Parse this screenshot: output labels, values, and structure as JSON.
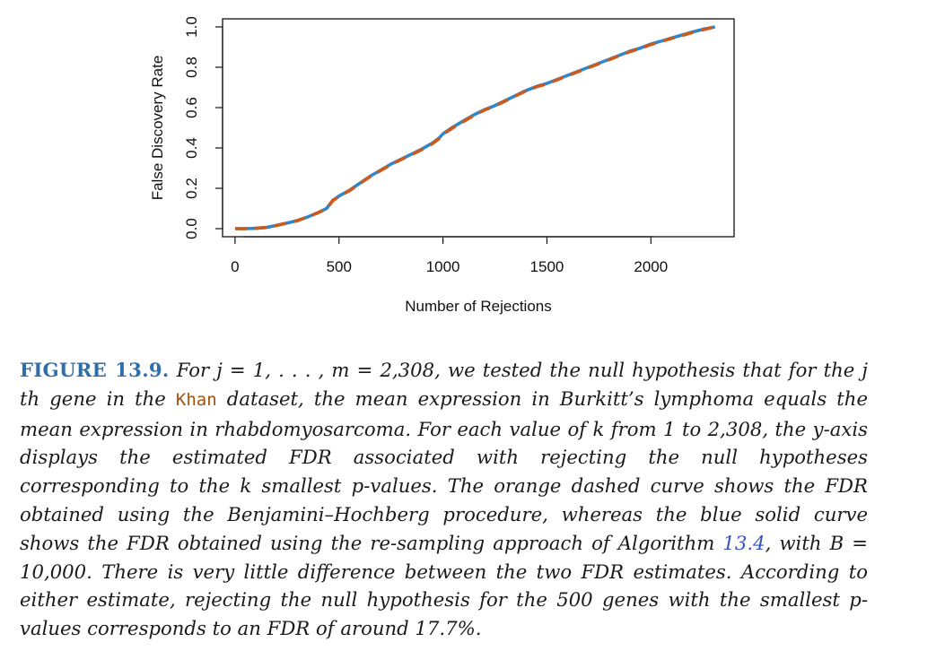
{
  "chart_data": {
    "type": "line",
    "title": "",
    "xlabel": "Number of Rejections",
    "ylabel": "False Discovery Rate",
    "xlim": [
      -60,
      2400
    ],
    "ylim": [
      -0.04,
      1.04
    ],
    "x_ticks": [
      0,
      500,
      1000,
      1500,
      2000
    ],
    "x_tick_labels": [
      "0",
      "500",
      "1000",
      "1500",
      "2000"
    ],
    "y_ticks": [
      0.0,
      0.2,
      0.4,
      0.6,
      0.8,
      1.0
    ],
    "y_tick_labels": [
      "0.0",
      "0.2",
      "0.4",
      "0.6",
      "0.8",
      "1.0"
    ],
    "grid": false,
    "x": [
      1,
      50,
      100,
      150,
      200,
      250,
      300,
      350,
      400,
      440,
      470,
      500,
      550,
      600,
      650,
      700,
      750,
      800,
      850,
      900,
      950,
      980,
      1000,
      1050,
      1100,
      1150,
      1200,
      1250,
      1300,
      1350,
      1400,
      1450,
      1500,
      1550,
      1600,
      1650,
      1700,
      1750,
      1800,
      1850,
      1900,
      1950,
      2000,
      2050,
      2100,
      2150,
      2200,
      2250,
      2308
    ],
    "series": [
      {
        "name": "Re-sampling (Algorithm 13.4)",
        "color": "#2f86c9",
        "style": "solid",
        "values": [
          0.0,
          0.0,
          0.002,
          0.006,
          0.016,
          0.028,
          0.04,
          0.058,
          0.08,
          0.1,
          0.14,
          0.162,
          0.19,
          0.225,
          0.26,
          0.29,
          0.32,
          0.345,
          0.37,
          0.395,
          0.425,
          0.448,
          0.47,
          0.505,
          0.535,
          0.565,
          0.59,
          0.61,
          0.635,
          0.66,
          0.685,
          0.705,
          0.72,
          0.74,
          0.76,
          0.78,
          0.8,
          0.82,
          0.84,
          0.86,
          0.88,
          0.895,
          0.915,
          0.93,
          0.945,
          0.96,
          0.975,
          0.988,
          1.0
        ]
      },
      {
        "name": "Benjamini-Hochberg",
        "color": "#cc5a1c",
        "style": "dashed",
        "values": [
          0.0,
          0.0,
          0.002,
          0.006,
          0.016,
          0.028,
          0.04,
          0.058,
          0.079,
          0.099,
          0.138,
          0.16,
          0.188,
          0.223,
          0.258,
          0.288,
          0.318,
          0.343,
          0.368,
          0.393,
          0.422,
          0.445,
          0.467,
          0.502,
          0.532,
          0.562,
          0.588,
          0.608,
          0.633,
          0.658,
          0.683,
          0.703,
          0.718,
          0.738,
          0.758,
          0.778,
          0.798,
          0.818,
          0.838,
          0.858,
          0.878,
          0.893,
          0.913,
          0.928,
          0.943,
          0.958,
          0.973,
          0.986,
          1.0
        ]
      }
    ]
  },
  "caption": {
    "label": "FIGURE 13.9.",
    "part1": " For j = 1, . . . , m = 2,308, we tested the null hypothesis that for the j th gene in the ",
    "code": "Khan",
    "part2": " dataset, the mean expression in Burkitt’s lymphoma equals the mean expression in rhabdomyosarcoma. For each value of k from 1 to 2,308, the y-axis displays the estimated FDR associated with rejecting the null hypotheses corresponding to the k smallest p-values. The orange dashed curve shows the FDR obtained using the Benjamini–Hochberg procedure, whereas the blue solid curve shows the FDR obtained using the re-sampling approach of Algorithm ",
    "ref": "13.4",
    "part3": ", with B = 10,000. There is very little difference between the two FDR estimates. According to either estimate, rejecting the null hypothesis for the 500 genes with the smallest p-values corresponds to an FDR of around 17.7%."
  }
}
